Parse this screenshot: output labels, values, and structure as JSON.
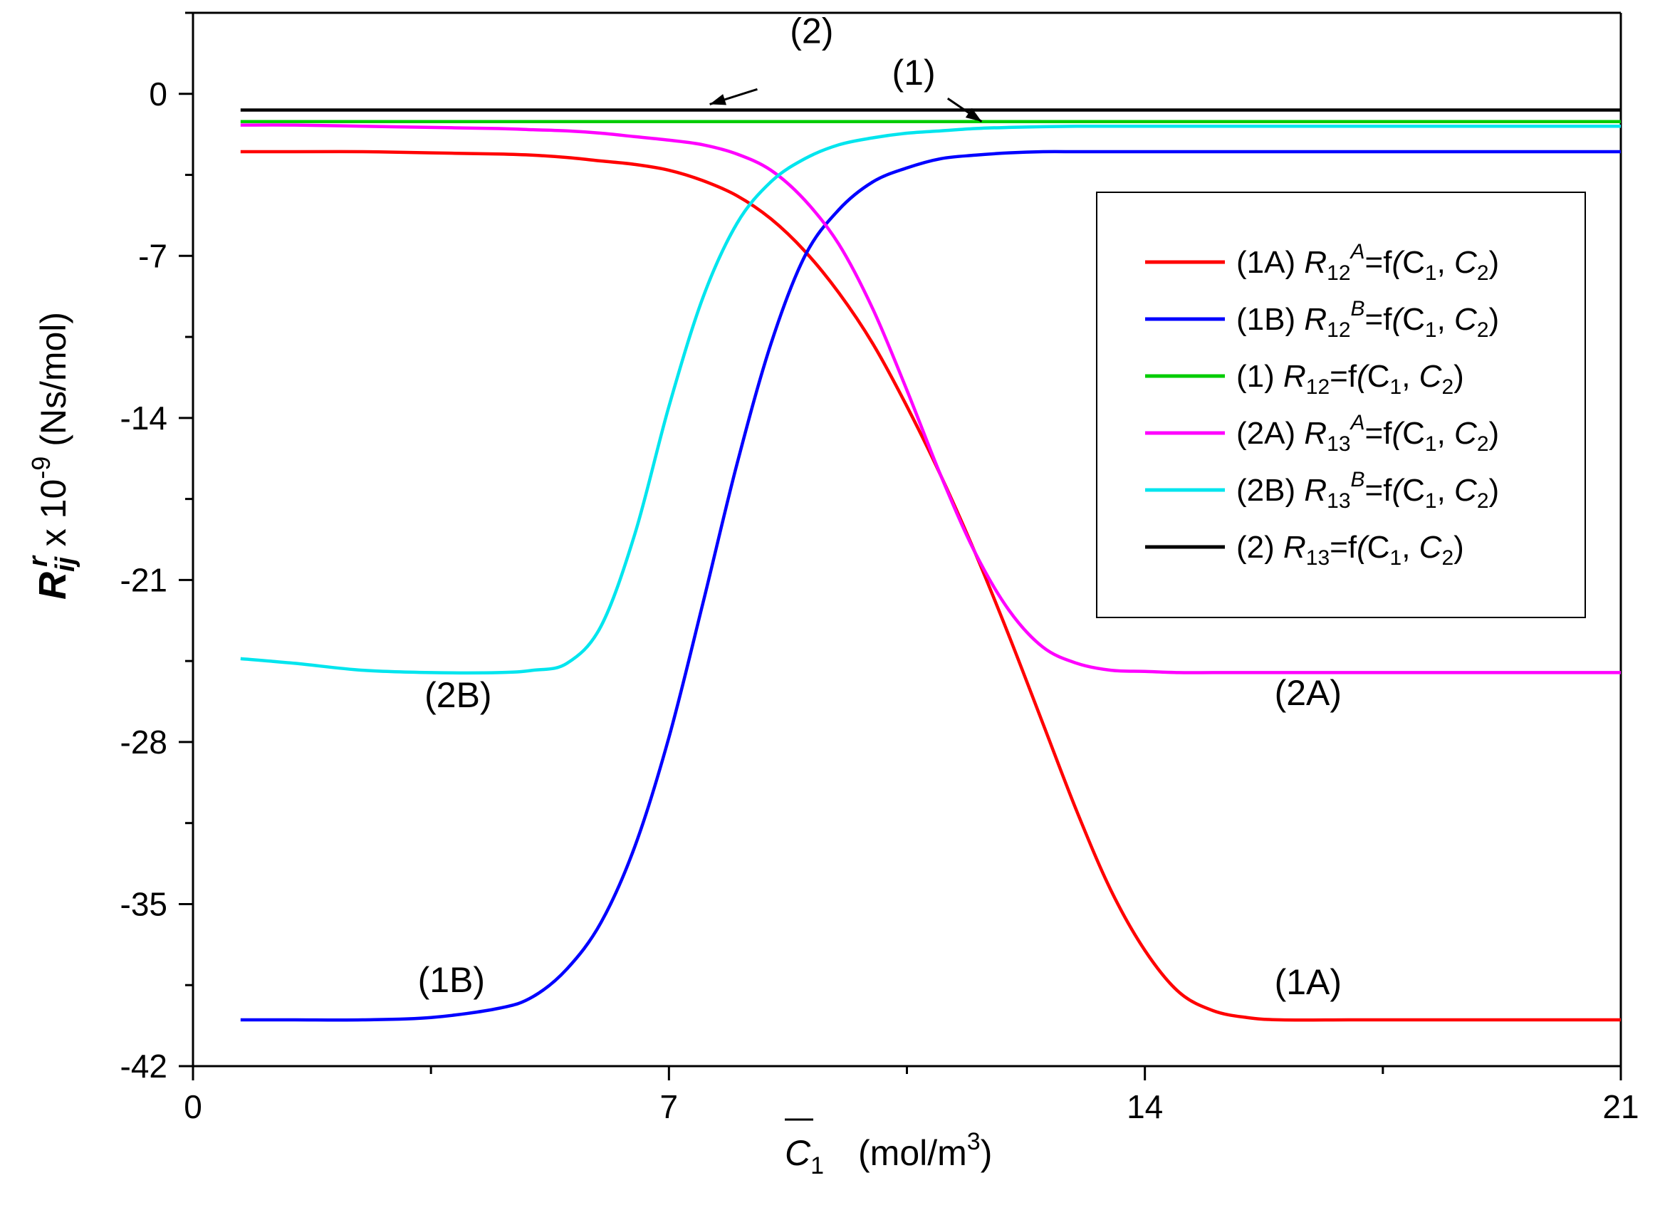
{
  "chart_data": {
    "type": "line",
    "title": "",
    "xlabel": {
      "symbol": "C",
      "sub": "1",
      "overline": true,
      "unit_prefix": "(mol/m",
      "unit_sup": "3",
      "unit_suffix": ")"
    },
    "ylabel": {
      "symbol": "R",
      "sub": "ij",
      "sup": "r",
      "rest": " x 10",
      "exp": "-9",
      "unit": " (Ns/mol)"
    },
    "xlim": [
      0,
      21
    ],
    "ylim": [
      -42,
      3.5
    ],
    "xticks": [
      0,
      7,
      14,
      21
    ],
    "xtick_labels": [
      "0",
      "7",
      "14",
      "21"
    ],
    "yticks": [
      0,
      -7,
      -14,
      -21,
      -28,
      -35,
      -42
    ],
    "ytick_labels": [
      "0",
      "-7",
      "-14",
      "-21",
      "-28",
      "-35",
      "-42"
    ],
    "x": [
      0.7,
      1.5,
      2.5,
      3.5,
      4.5,
      5.0,
      5.5,
      6.0,
      6.5,
      7.0,
      7.5,
      8.0,
      8.5,
      9.0,
      9.5,
      10.0,
      10.5,
      11.0,
      11.5,
      12.0,
      12.5,
      13.0,
      13.5,
      14.0,
      14.5,
      15.0,
      15.5,
      16.0,
      17.0,
      18.0,
      19.0,
      20.0,
      21.0
    ],
    "series": [
      {
        "name": "1A",
        "color": "#ff0000",
        "values": [
          -2.5,
          -2.5,
          -2.5,
          -2.55,
          -2.6,
          -2.65,
          -2.75,
          -2.9,
          -3.05,
          -3.3,
          -3.75,
          -4.4,
          -5.4,
          -6.8,
          -8.6,
          -10.8,
          -13.5,
          -16.5,
          -19.8,
          -23.4,
          -27.2,
          -31.0,
          -34.4,
          -37.0,
          -38.8,
          -39.6,
          -39.9,
          -40.0,
          -40.0,
          -40.0,
          -40.0,
          -40.0,
          -40.0
        ]
      },
      {
        "name": "1B",
        "color": "#0000ff",
        "values": [
          -40.0,
          -40.0,
          -40.0,
          -39.9,
          -39.5,
          -39.0,
          -37.8,
          -35.8,
          -32.5,
          -27.8,
          -22.0,
          -16.0,
          -10.8,
          -7.0,
          -5.0,
          -3.8,
          -3.2,
          -2.8,
          -2.65,
          -2.55,
          -2.5,
          -2.5,
          -2.5,
          -2.5,
          -2.5,
          -2.5,
          -2.5,
          -2.5,
          -2.5,
          -2.5,
          -2.5,
          -2.5,
          -2.5
        ]
      },
      {
        "name": "1",
        "color": "#00cc00",
        "values": [
          -1.2,
          -1.2,
          -1.2,
          -1.2,
          -1.2,
          -1.2,
          -1.2,
          -1.2,
          -1.2,
          -1.2,
          -1.2,
          -1.2,
          -1.2,
          -1.2,
          -1.2,
          -1.2,
          -1.2,
          -1.2,
          -1.2,
          -1.2,
          -1.2,
          -1.2,
          -1.2,
          -1.2,
          -1.2,
          -1.2,
          -1.2,
          -1.2,
          -1.2,
          -1.2,
          -1.2,
          -1.2,
          -1.2
        ]
      },
      {
        "name": "2A",
        "color": "#ff00ff",
        "values": [
          -1.35,
          -1.35,
          -1.4,
          -1.45,
          -1.5,
          -1.55,
          -1.6,
          -1.7,
          -1.85,
          -2.0,
          -2.2,
          -2.6,
          -3.3,
          -4.6,
          -6.5,
          -9.3,
          -12.8,
          -16.5,
          -19.8,
          -22.3,
          -23.9,
          -24.6,
          -24.9,
          -24.95,
          -25.0,
          -25.0,
          -25.0,
          -25.0,
          -25.0,
          -25.0,
          -25.0,
          -25.0,
          -25.0
        ]
      },
      {
        "name": "2B",
        "color": "#00e5ee",
        "values": [
          -24.4,
          -24.6,
          -24.9,
          -25.0,
          -25.0,
          -24.9,
          -24.6,
          -23.0,
          -19.0,
          -13.5,
          -8.8,
          -5.6,
          -3.8,
          -2.8,
          -2.2,
          -1.9,
          -1.7,
          -1.6,
          -1.5,
          -1.45,
          -1.42,
          -1.4,
          -1.4,
          -1.4,
          -1.4,
          -1.4,
          -1.4,
          -1.4,
          -1.4,
          -1.4,
          -1.4,
          -1.4,
          -1.4
        ]
      },
      {
        "name": "2",
        "color": "#000000",
        "values": [
          -0.7,
          -0.7,
          -0.7,
          -0.7,
          -0.7,
          -0.7,
          -0.7,
          -0.7,
          -0.7,
          -0.7,
          -0.7,
          -0.7,
          -0.7,
          -0.7,
          -0.7,
          -0.7,
          -0.7,
          -0.7,
          -0.7,
          -0.7,
          -0.7,
          -0.7,
          -0.7,
          -0.7,
          -0.7,
          -0.7,
          -0.7,
          -0.7,
          -0.7,
          -0.7,
          -0.7,
          -0.7,
          -0.7
        ]
      }
    ],
    "legend": {
      "placement": "right, upper-middle",
      "entries": [
        {
          "series": "1A",
          "prefix": "(1A) ",
          "sup": "A"
        },
        {
          "series": "1B",
          "prefix": "(1B) ",
          "sup": "B"
        },
        {
          "series": "1",
          "prefix": "(1)  ",
          "sup": ""
        },
        {
          "series": "2A",
          "prefix": "(2A) ",
          "sup": "A"
        },
        {
          "series": "2B",
          "prefix": "(2B) ",
          "sup": "B"
        },
        {
          "series": "2",
          "prefix": "(2)  ",
          "sup": ""
        }
      ],
      "subs": [
        "12",
        "12",
        "12",
        "13",
        "13",
        "13"
      ],
      "func": "=f(C",
      "sep": ", C",
      "close": ")",
      "arg1": "1",
      "arg2": "2"
    },
    "annotations": [
      {
        "id": "2B",
        "text": "(2B)",
        "x": 3.9,
        "y": -26.5
      },
      {
        "id": "2A",
        "text": "(2A)",
        "x": 16.4,
        "y": -26.4
      },
      {
        "id": "1B",
        "text": "(1B)",
        "x": 3.8,
        "y": -38.8
      },
      {
        "id": "1A",
        "text": "(1A)",
        "x": 16.4,
        "y": -38.9
      },
      {
        "id": "2",
        "text": "(2)",
        "x": 9.1,
        "y": 2.2
      },
      {
        "id": "1",
        "text": "(1)",
        "x": 10.6,
        "y": 0.4
      }
    ],
    "arrows": [
      {
        "id": "2",
        "from": [
          8.3,
          0.2
        ],
        "to": [
          7.6,
          -0.45
        ]
      },
      {
        "id": "1",
        "from": [
          11.1,
          -0.2
        ],
        "to": [
          11.6,
          -1.2
        ]
      }
    ]
  }
}
